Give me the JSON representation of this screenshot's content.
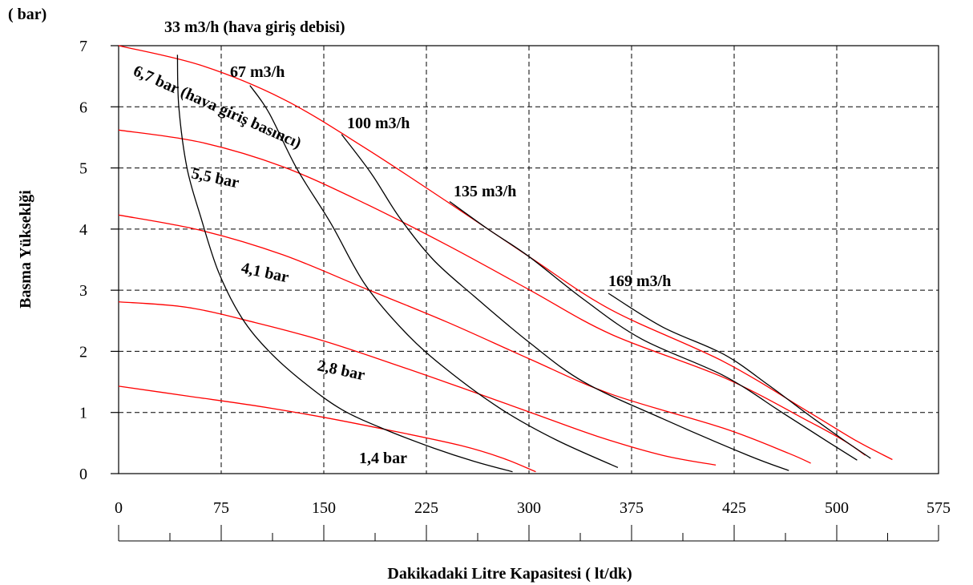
{
  "chart_data": {
    "type": "line",
    "title": "",
    "xlabel": "Dakikadaki Litre Kapasitesi ( lt/dk)",
    "ylabel": "Basma Yükseklği",
    "y_unit": "( bar)",
    "xlim": [
      0,
      575
    ],
    "ylim": [
      0,
      7
    ],
    "x_ticks": [
      "0",
      "75",
      "150",
      "225",
      "300",
      "375",
      "425",
      "500",
      "575"
    ],
    "y_ticks": [
      "0",
      "1",
      "2",
      "3",
      "4",
      "5",
      "6",
      "7"
    ],
    "grid": true,
    "colors": {
      "pressure": "#ff0000",
      "flow": "#000000"
    },
    "series": [
      {
        "label": "6,7 bar (hava giriş basıncı)",
        "kind": "pressure",
        "points": [
          [
            0,
            7.0
          ],
          [
            60,
            6.68
          ],
          [
            120,
            6.13
          ],
          [
            180,
            5.33
          ],
          [
            240,
            4.45
          ],
          [
            300,
            3.55
          ],
          [
            360,
            2.68
          ],
          [
            420,
            1.83
          ],
          [
            480,
            1.0
          ],
          [
            515,
            0.53
          ],
          [
            541,
            0.23
          ]
        ]
      },
      {
        "label": "5,5 bar",
        "kind": "pressure",
        "points": [
          [
            0,
            5.62
          ],
          [
            60,
            5.42
          ],
          [
            120,
            5.02
          ],
          [
            180,
            4.42
          ],
          [
            240,
            3.74
          ],
          [
            300,
            3.01
          ],
          [
            360,
            2.28
          ],
          [
            420,
            1.57
          ],
          [
            480,
            0.85
          ],
          [
            506,
            0.53
          ],
          [
            521,
            0.3
          ]
        ]
      },
      {
        "label": "4,1 bar",
        "kind": "pressure",
        "points": [
          [
            0,
            4.23
          ],
          [
            60,
            3.98
          ],
          [
            120,
            3.58
          ],
          [
            180,
            3.03
          ],
          [
            240,
            2.48
          ],
          [
            300,
            1.88
          ],
          [
            360,
            1.3
          ],
          [
            420,
            0.74
          ],
          [
            465,
            0.33
          ],
          [
            481,
            0.17
          ]
        ]
      },
      {
        "label": "2,8 bar",
        "kind": "pressure",
        "points": [
          [
            0,
            2.81
          ],
          [
            50,
            2.72
          ],
          [
            100,
            2.47
          ],
          [
            150,
            2.17
          ],
          [
            200,
            1.8
          ],
          [
            250,
            1.41
          ],
          [
            300,
            1.01
          ],
          [
            350,
            0.61
          ],
          [
            390,
            0.3
          ],
          [
            416,
            0.14
          ]
        ]
      },
      {
        "label": "1,4 bar",
        "kind": "pressure",
        "points": [
          [
            0,
            1.43
          ],
          [
            50,
            1.27
          ],
          [
            100,
            1.11
          ],
          [
            150,
            0.92
          ],
          [
            200,
            0.7
          ],
          [
            250,
            0.46
          ],
          [
            280,
            0.26
          ],
          [
            305,
            0.03
          ]
        ]
      },
      {
        "label": "33 m3/h (hava giriş debisi)",
        "kind": "flow",
        "points": [
          [
            43,
            6.85
          ],
          [
            44,
            6.0
          ],
          [
            50,
            5.0
          ],
          [
            60,
            4.2
          ],
          [
            73,
            3.3
          ],
          [
            90,
            2.55
          ],
          [
            110,
            2.0
          ],
          [
            135,
            1.5
          ],
          [
            163,
            1.05
          ],
          [
            195,
            0.72
          ],
          [
            230,
            0.42
          ],
          [
            260,
            0.2
          ],
          [
            288,
            0.03
          ]
        ]
      },
      {
        "label": "67 m3/h",
        "kind": "flow",
        "points": [
          [
            96,
            6.35
          ],
          [
            110,
            5.9
          ],
          [
            130,
            5.0
          ],
          [
            155,
            4.1
          ],
          [
            180,
            3.1
          ],
          [
            210,
            2.3
          ],
          [
            240,
            1.7
          ],
          [
            280,
            1.05
          ],
          [
            320,
            0.55
          ],
          [
            365,
            0.1
          ]
        ]
      },
      {
        "label": "100 m3/h",
        "kind": "flow",
        "points": [
          [
            163,
            5.55
          ],
          [
            185,
            4.9
          ],
          [
            205,
            4.2
          ],
          [
            230,
            3.5
          ],
          [
            260,
            2.9
          ],
          [
            300,
            2.15
          ],
          [
            340,
            1.5
          ],
          [
            390,
            0.9
          ],
          [
            435,
            0.3
          ],
          [
            465,
            0.05
          ]
        ]
      },
      {
        "label": "135 m3/h",
        "kind": "flow",
        "points": [
          [
            242,
            4.45
          ],
          [
            270,
            4.0
          ],
          [
            300,
            3.55
          ],
          [
            340,
            2.85
          ],
          [
            380,
            2.2
          ],
          [
            420,
            1.6
          ],
          [
            460,
            1.0
          ],
          [
            495,
            0.5
          ],
          [
            515,
            0.22
          ]
        ]
      },
      {
        "label": "169 m3/h",
        "kind": "flow",
        "points": [
          [
            358,
            2.95
          ],
          [
            390,
            2.4
          ],
          [
            420,
            1.95
          ],
          [
            450,
            1.45
          ],
          [
            480,
            0.95
          ],
          [
            505,
            0.55
          ],
          [
            525,
            0.25
          ]
        ]
      }
    ]
  }
}
